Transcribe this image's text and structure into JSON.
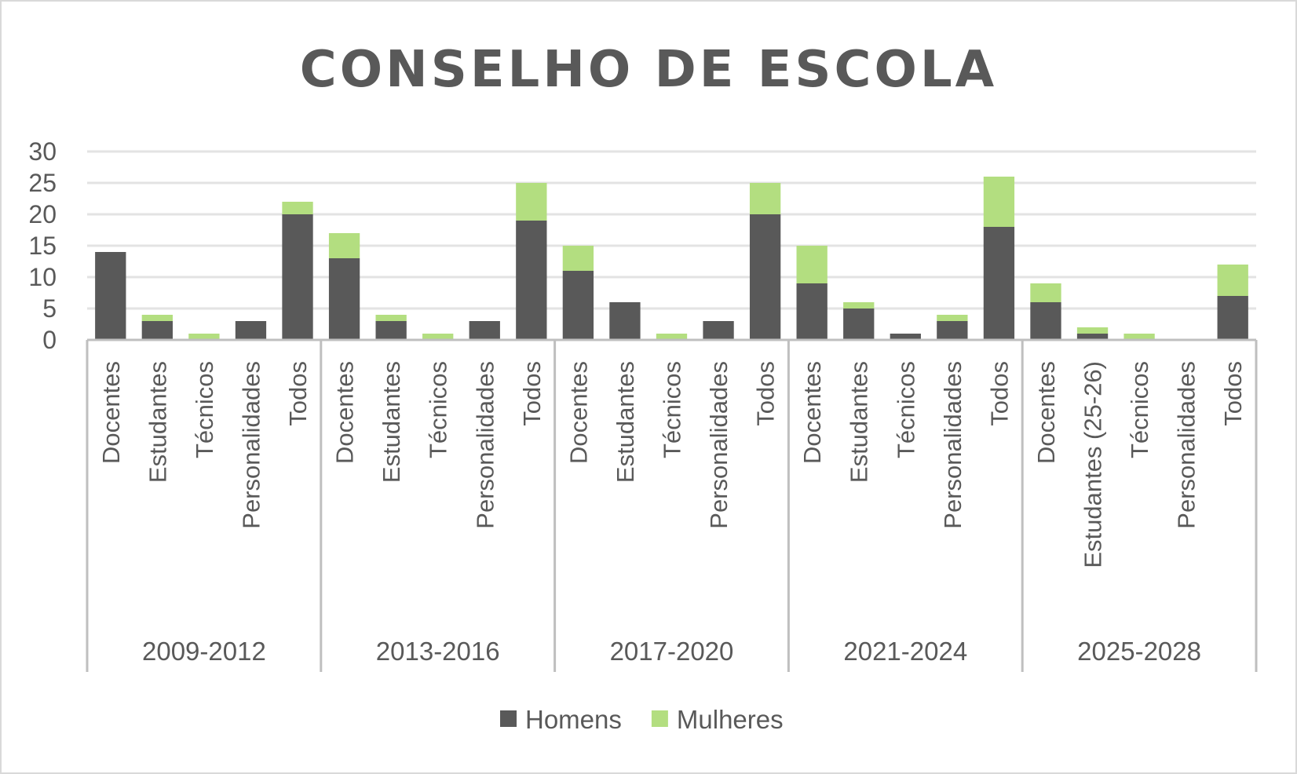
{
  "chart_data": {
    "type": "bar",
    "stacked": true,
    "title": "CONSELHO DE ESCOLA",
    "xlabel": "",
    "ylabel": "",
    "ylim": [
      0,
      30
    ],
    "yticks": [
      "0",
      "5",
      "10",
      "15",
      "20",
      "25",
      "30"
    ],
    "grid": true,
    "legend_position": "bottom",
    "groups": [
      {
        "label": "2009-2012",
        "categories": [
          "Docentes",
          "Estudantes",
          "Técnicos",
          "Personalidades",
          "Todos"
        ]
      },
      {
        "label": "2013-2016",
        "categories": [
          "Docentes",
          "Estudantes",
          "Técnicos",
          "Personalidades",
          "Todos"
        ]
      },
      {
        "label": "2017-2020",
        "categories": [
          "Docentes",
          "Estudantes",
          "Técnicos",
          "Personalidades",
          "Todos"
        ]
      },
      {
        "label": "2021-2024",
        "categories": [
          "Docentes",
          "Estudantes",
          "Técnicos",
          "Personalidades",
          "Todos"
        ]
      },
      {
        "label": "2025-2028",
        "categories": [
          "Docentes",
          "Estudantes (25-26)",
          "Técnicos",
          "Personalidades",
          "Todos"
        ]
      }
    ],
    "series": [
      {
        "name": "Homens",
        "color": "#595959",
        "values": [
          14,
          3,
          0,
          3,
          20,
          13,
          3,
          0,
          3,
          19,
          11,
          6,
          0,
          3,
          20,
          9,
          5,
          1,
          3,
          18,
          6,
          1,
          0,
          0,
          7
        ]
      },
      {
        "name": "Mulheres",
        "color": "#b3de80",
        "values": [
          0,
          1,
          1,
          0,
          2,
          4,
          1,
          1,
          0,
          6,
          4,
          0,
          1,
          0,
          5,
          6,
          1,
          0,
          1,
          8,
          3,
          1,
          1,
          0,
          5
        ]
      }
    ]
  }
}
